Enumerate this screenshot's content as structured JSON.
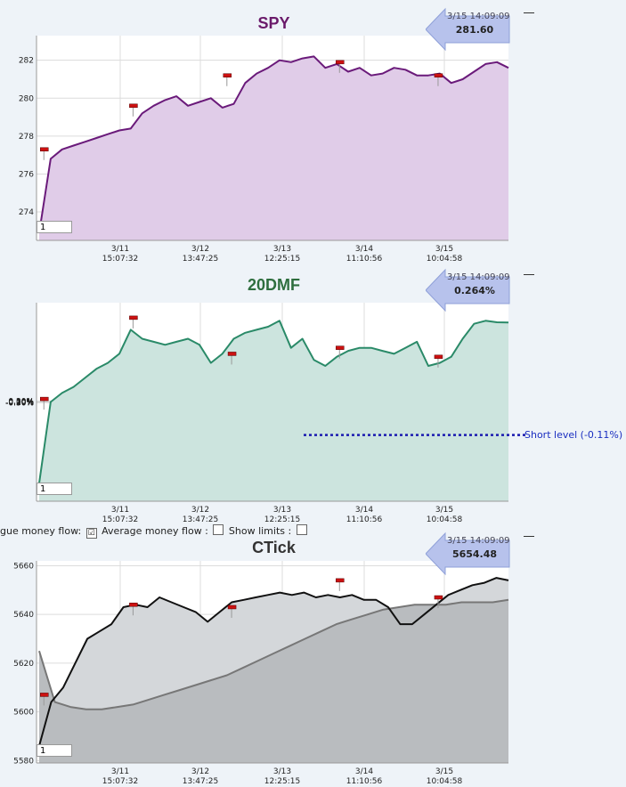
{
  "charts": [
    {
      "title": "SPY",
      "title_color": "#6a1a6a",
      "callout": {
        "time": "3/15 14:09:09",
        "value": "281.60"
      },
      "zoom_value": "1"
    },
    {
      "title": "20DMF",
      "title_color": "#2e6e3e",
      "callout": {
        "time": "3/15 14:09:09",
        "value": "0.264%"
      },
      "zoom_value": "1",
      "short_level": "Short level (-0.11%)"
    },
    {
      "title": "CTick",
      "title_color": "#333333",
      "callout": {
        "time": "3/15 14:09:09",
        "value": "5654.48"
      },
      "zoom_value": "1"
    }
  ],
  "controls": {
    "label1": "gue money flow:",
    "label2": "Average money flow :",
    "label3": "Show limits :",
    "cb1_mark": "☑",
    "cb2_mark": "",
    "cb3_mark": ""
  },
  "chart_data": [
    {
      "type": "area",
      "title": "SPY",
      "x_ticks": [
        {
          "date": "3/11",
          "time": "15:07:32"
        },
        {
          "date": "3/12",
          "time": "13:47:25"
        },
        {
          "date": "3/13",
          "time": "12:25:15"
        },
        {
          "date": "3/14",
          "time": "11:10:56"
        },
        {
          "date": "3/15",
          "time": "10:04:58"
        }
      ],
      "y_ticks": [
        "274",
        "276",
        "278",
        "280",
        "282"
      ],
      "ylim": [
        272.5,
        283.3
      ],
      "line_color": "#6a1a7a",
      "fill_color": "#e0cce8",
      "markers_y": [
        277.3,
        279.6,
        281.2,
        281.9,
        281.2
      ],
      "markers_x": [
        0.01,
        0.2,
        0.4,
        0.64,
        0.85
      ],
      "series": [
        {
          "values": [
            272.9,
            276.8,
            277.3,
            277.5,
            277.7,
            277.9,
            278.1,
            278.3,
            278.4,
            279.2,
            279.6,
            279.9,
            280.1,
            279.6,
            279.8,
            280.0,
            279.5,
            279.7,
            280.8,
            281.3,
            281.6,
            282.0,
            281.9,
            282.1,
            282.2,
            281.6,
            281.8,
            281.4,
            281.6,
            281.2,
            281.3,
            281.6,
            281.5,
            281.2,
            281.2,
            281.3,
            280.8,
            281.0,
            281.4,
            281.8,
            281.9,
            281.6
          ]
        }
      ]
    },
    {
      "type": "area",
      "title": "20DMF",
      "x_ticks": [
        {
          "date": "3/11",
          "time": "15:07:32"
        },
        {
          "date": "3/12",
          "time": "13:47:25"
        },
        {
          "date": "3/13",
          "time": "12:25:15"
        },
        {
          "date": "3/14",
          "time": "11:10:56"
        },
        {
          "date": "3/15",
          "time": "10:04:58"
        }
      ],
      "y_ticks": [
        "-0.30%",
        "-0.20%",
        "-0.10%",
        "0.00%",
        "0.10%",
        "0.20%",
        "0.30%"
      ],
      "ylim": [
        -0.33,
        0.33
      ],
      "line_color": "#2a8a68",
      "fill_color": "#cce4de",
      "short_level_value": -0.11,
      "markers_y": [
        0.01,
        0.28,
        0.16,
        0.18,
        0.15
      ],
      "markers_x": [
        0.01,
        0.2,
        0.41,
        0.64,
        0.85
      ],
      "series": [
        {
          "values": [
            -0.27,
            0.0,
            0.03,
            0.05,
            0.08,
            0.11,
            0.13,
            0.16,
            0.24,
            0.21,
            0.2,
            0.19,
            0.2,
            0.21,
            0.19,
            0.13,
            0.16,
            0.21,
            0.23,
            0.24,
            0.25,
            0.27,
            0.18,
            0.21,
            0.14,
            0.12,
            0.15,
            0.17,
            0.18,
            0.18,
            0.17,
            0.16,
            0.18,
            0.2,
            0.12,
            0.13,
            0.15,
            0.21,
            0.26,
            0.27,
            0.265,
            0.264
          ]
        }
      ]
    },
    {
      "type": "area",
      "title": "CTick",
      "x_ticks": [
        {
          "date": "3/11",
          "time": "15:07:32"
        },
        {
          "date": "3/12",
          "time": "13:47:25"
        },
        {
          "date": "3/13",
          "time": "12:25:15"
        },
        {
          "date": "3/14",
          "time": "11:10:56"
        },
        {
          "date": "3/15",
          "time": "10:04:58"
        }
      ],
      "y_ticks": [
        "5580",
        "5600",
        "5620",
        "5640",
        "5660"
      ],
      "ylim": [
        5579,
        5662
      ],
      "line_color": "#111111",
      "fill_color": "#d4d7da",
      "avg_color": "#777777",
      "avg_fill_color": "#b9bcbf",
      "markers_y": [
        5607,
        5644,
        5643,
        5654,
        5647
      ],
      "markers_x": [
        0.01,
        0.2,
        0.41,
        0.64,
        0.85
      ],
      "series": [
        {
          "name": "CTick",
          "values": [
            5586,
            5604,
            5610,
            5620,
            5630,
            5633,
            5636,
            5643,
            5644,
            5643,
            5647,
            5645,
            5643,
            5641,
            5637,
            5641,
            5645,
            5646,
            5647,
            5648,
            5649,
            5648,
            5649,
            5647,
            5648,
            5647,
            5648,
            5646,
            5646,
            5643,
            5636,
            5636,
            5640,
            5644,
            5648,
            5650,
            5652,
            5653,
            5655,
            5654
          ]
        },
        {
          "name": "Average",
          "values": [
            5625,
            5604,
            5602,
            5601,
            5601,
            5602,
            5603,
            5605,
            5607,
            5609,
            5611,
            5613,
            5615,
            5618,
            5621,
            5624,
            5627,
            5630,
            5633,
            5636,
            5638,
            5640,
            5642,
            5643,
            5644,
            5644,
            5644,
            5645,
            5645,
            5645,
            5646
          ]
        }
      ]
    }
  ]
}
